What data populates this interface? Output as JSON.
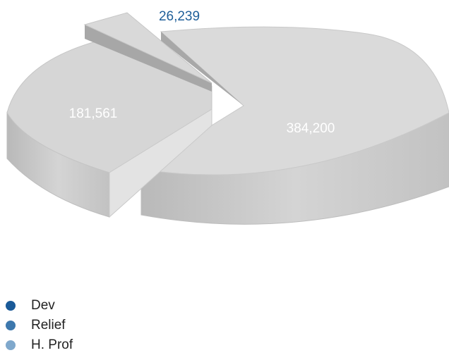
{
  "chart_data": {
    "type": "pie",
    "style": "3d-exploded",
    "title": "",
    "slices": [
      {
        "label": "Dev",
        "value": 384200,
        "display": "384,200",
        "color": "#1a5a98",
        "label_color": "#ffffff"
      },
      {
        "label": "Relief",
        "value": 181561,
        "display": "181,561",
        "color": "#3d78ad",
        "label_color": "#ffffff"
      },
      {
        "label": "H. Prof",
        "value": 26239,
        "display": "26,239",
        "color": "#7fa8cc",
        "label_color": "#1f5f99"
      }
    ],
    "legend_position": "bottom-left"
  }
}
